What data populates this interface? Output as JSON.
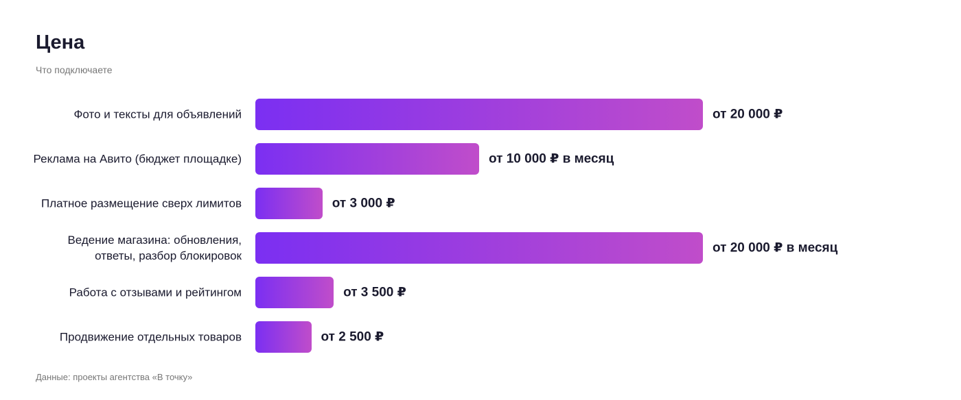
{
  "chart_data": {
    "type": "bar",
    "orientation": "horizontal",
    "title": "Цена",
    "subtitle": "Что подключаете",
    "categories": [
      "Фото и тексты для объявлений",
      "Реклама на Авито (бюджет площадке)",
      "Платное размещение сверх лимитов",
      "Ведение магазина: обновления, ответы, разбор блокировок",
      "Работа с отзывами и рейтингом",
      "Продвижение отдельных товаров"
    ],
    "values": [
      20000,
      10000,
      3000,
      20000,
      3500,
      2500
    ],
    "value_labels": [
      "от 20 000 ₽",
      "от 10 000 ₽ в месяц",
      "от 3 000 ₽",
      "от 20 000 ₽ в месяц",
      "от 3 500 ₽",
      "от 2 500 ₽"
    ],
    "gradient": [
      "#7b2ff2",
      "#c04dca"
    ],
    "source": "Данные: проекты агентства «В точку»"
  }
}
